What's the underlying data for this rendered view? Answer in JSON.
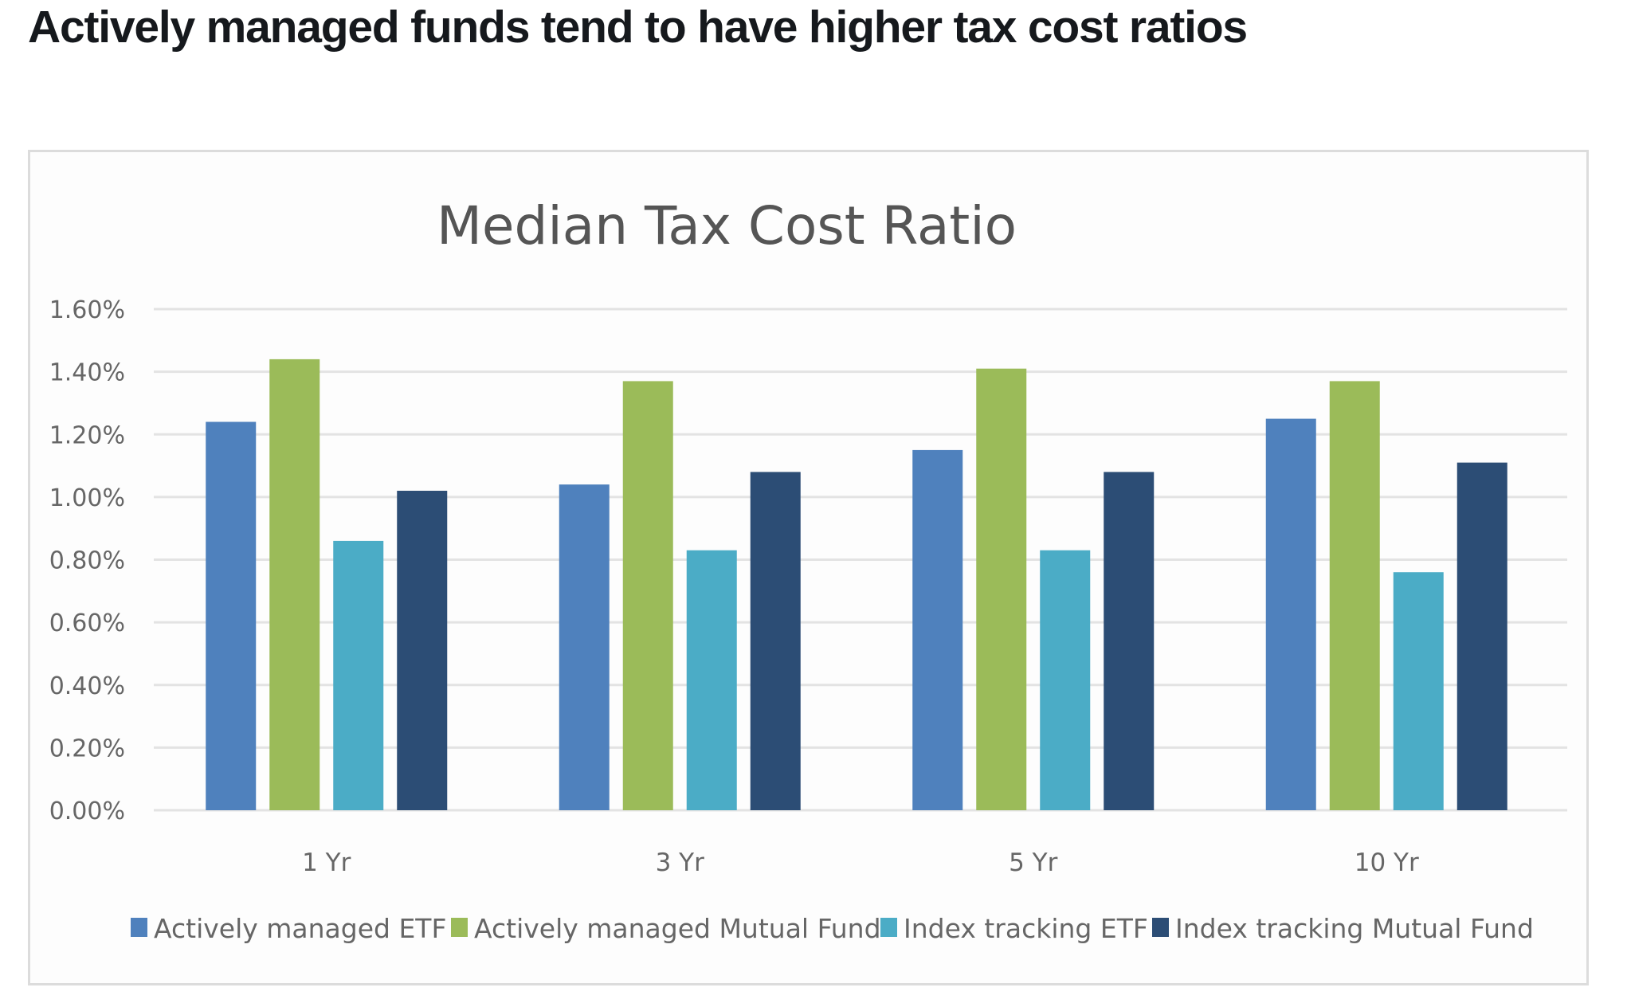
{
  "page": {
    "heading": "Actively managed funds tend to have higher tax cost ratios"
  },
  "chart_data": {
    "type": "bar",
    "title": "Median Tax Cost Ratio",
    "xlabel": "",
    "ylabel": "",
    "categories": [
      "1 Yr",
      "3 Yr",
      "5 Yr",
      "10 Yr"
    ],
    "series": [
      {
        "name": "Actively managed ETF",
        "color": "#4f81bd",
        "values": [
          1.24,
          1.04,
          1.15,
          1.25
        ]
      },
      {
        "name": "Actively managed Mutual Fund",
        "color": "#9bbb59",
        "values": [
          1.44,
          1.37,
          1.41,
          1.37
        ]
      },
      {
        "name": "Index tracking ETF",
        "color": "#4bacc6",
        "values": [
          0.86,
          0.83,
          0.83,
          0.76
        ]
      },
      {
        "name": "Index tracking Mutual Fund",
        "color": "#2c4d75",
        "values": [
          1.02,
          1.08,
          1.08,
          1.11
        ]
      }
    ],
    "ylim": [
      0,
      1.6
    ],
    "yticks": [
      0,
      0.2,
      0.4,
      0.6,
      0.8,
      1.0,
      1.2,
      1.4,
      1.6
    ],
    "ytick_labels": [
      "0.00%",
      "0.20%",
      "0.40%",
      "0.60%",
      "0.80%",
      "1.00%",
      "1.20%",
      "1.40%",
      "1.60%"
    ],
    "value_unit": "%",
    "grid": true,
    "legend_position": "bottom"
  }
}
